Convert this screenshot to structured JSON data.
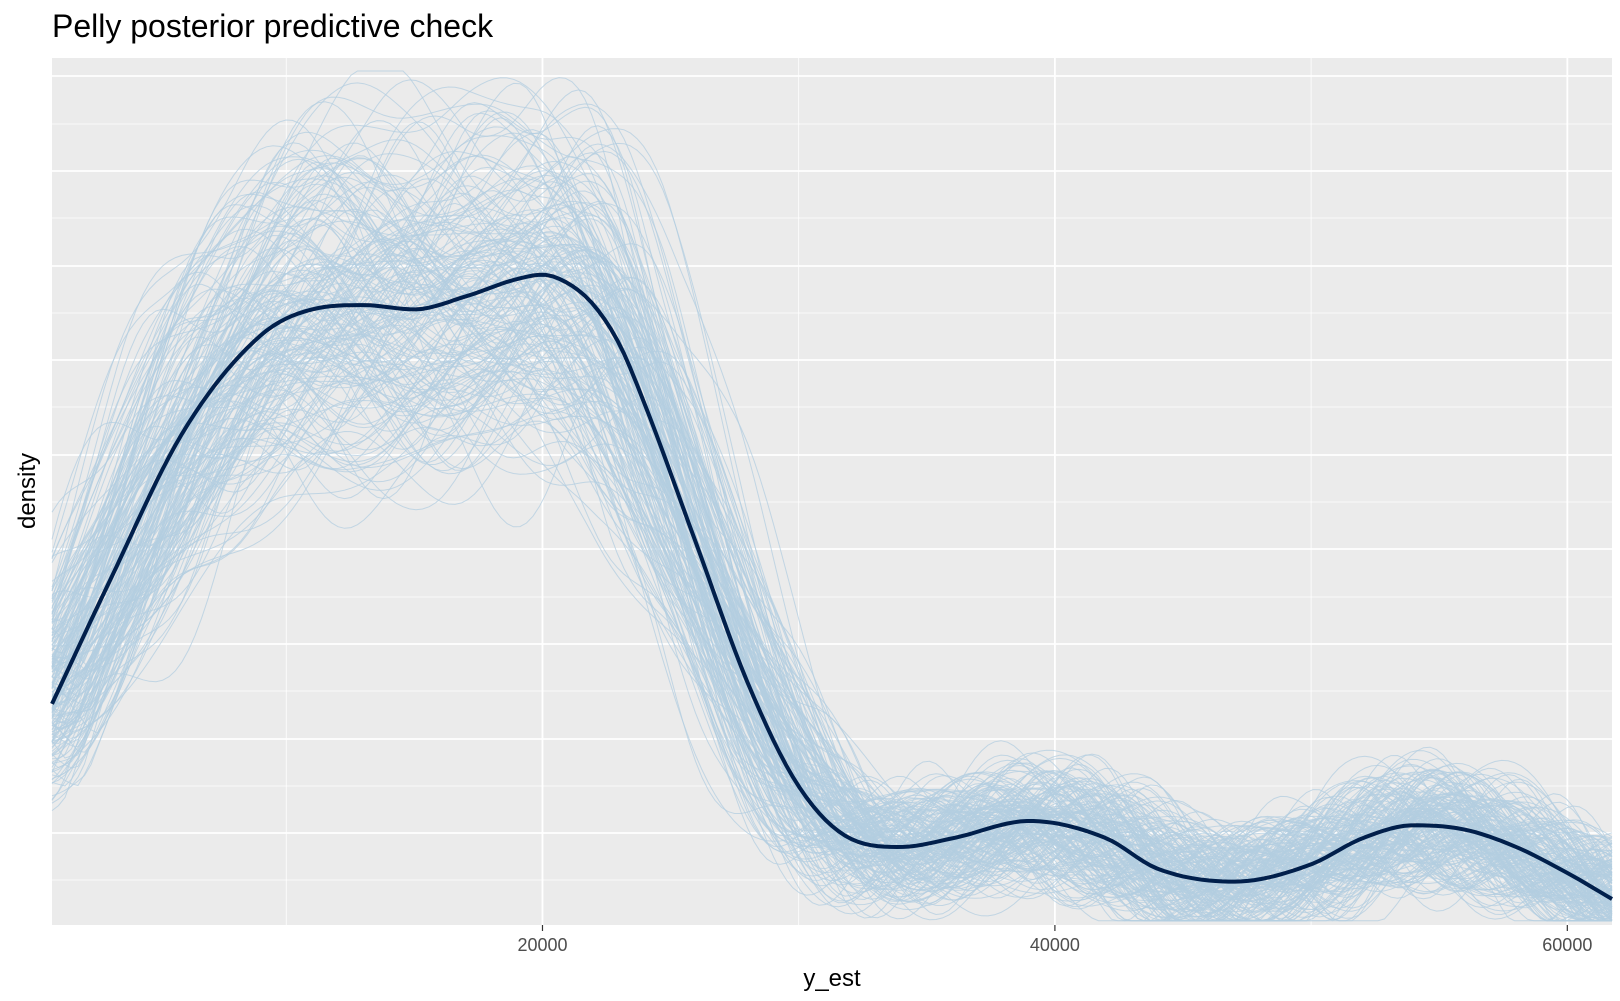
{
  "chart_data": {
    "type": "line",
    "title": "Pelly posterior predictive check",
    "xlabel": "y_est",
    "ylabel": "density",
    "xlim": [
      856,
      61744
    ],
    "ylim": [
      0,
      1
    ],
    "x_ticks": [
      20000,
      40000,
      60000
    ],
    "x_tick_labels": [
      "20000",
      "40000",
      "60000"
    ],
    "y_tick_labels_shown": false,
    "grid": true,
    "legend": "none",
    "colors": {
      "panel_background": "#ebebeb",
      "grid": "#ffffff",
      "observed": "#011f4b",
      "replicated": "#b3cde0"
    },
    "observed_series": {
      "x": [
        856,
        3000,
        6000,
        9000,
        11000,
        13000,
        15000,
        17000,
        19000,
        20000,
        21000,
        22000,
        23000,
        24000,
        26000,
        28000,
        30000,
        32000,
        34000,
        36000,
        39000,
        42000,
        44000,
        47000,
        50000,
        52000,
        54000,
        56000,
        58000,
        60000,
        61744
      ],
      "y": [
        0.255,
        0.39,
        0.57,
        0.68,
        0.71,
        0.715,
        0.71,
        0.725,
        0.745,
        0.75,
        0.74,
        0.715,
        0.67,
        0.6,
        0.44,
        0.28,
        0.16,
        0.1,
        0.09,
        0.1,
        0.12,
        0.1,
        0.065,
        0.05,
        0.07,
        0.1,
        0.115,
        0.11,
        0.09,
        0.06,
        0.03
      ]
    },
    "replicated_draws": 200
  }
}
